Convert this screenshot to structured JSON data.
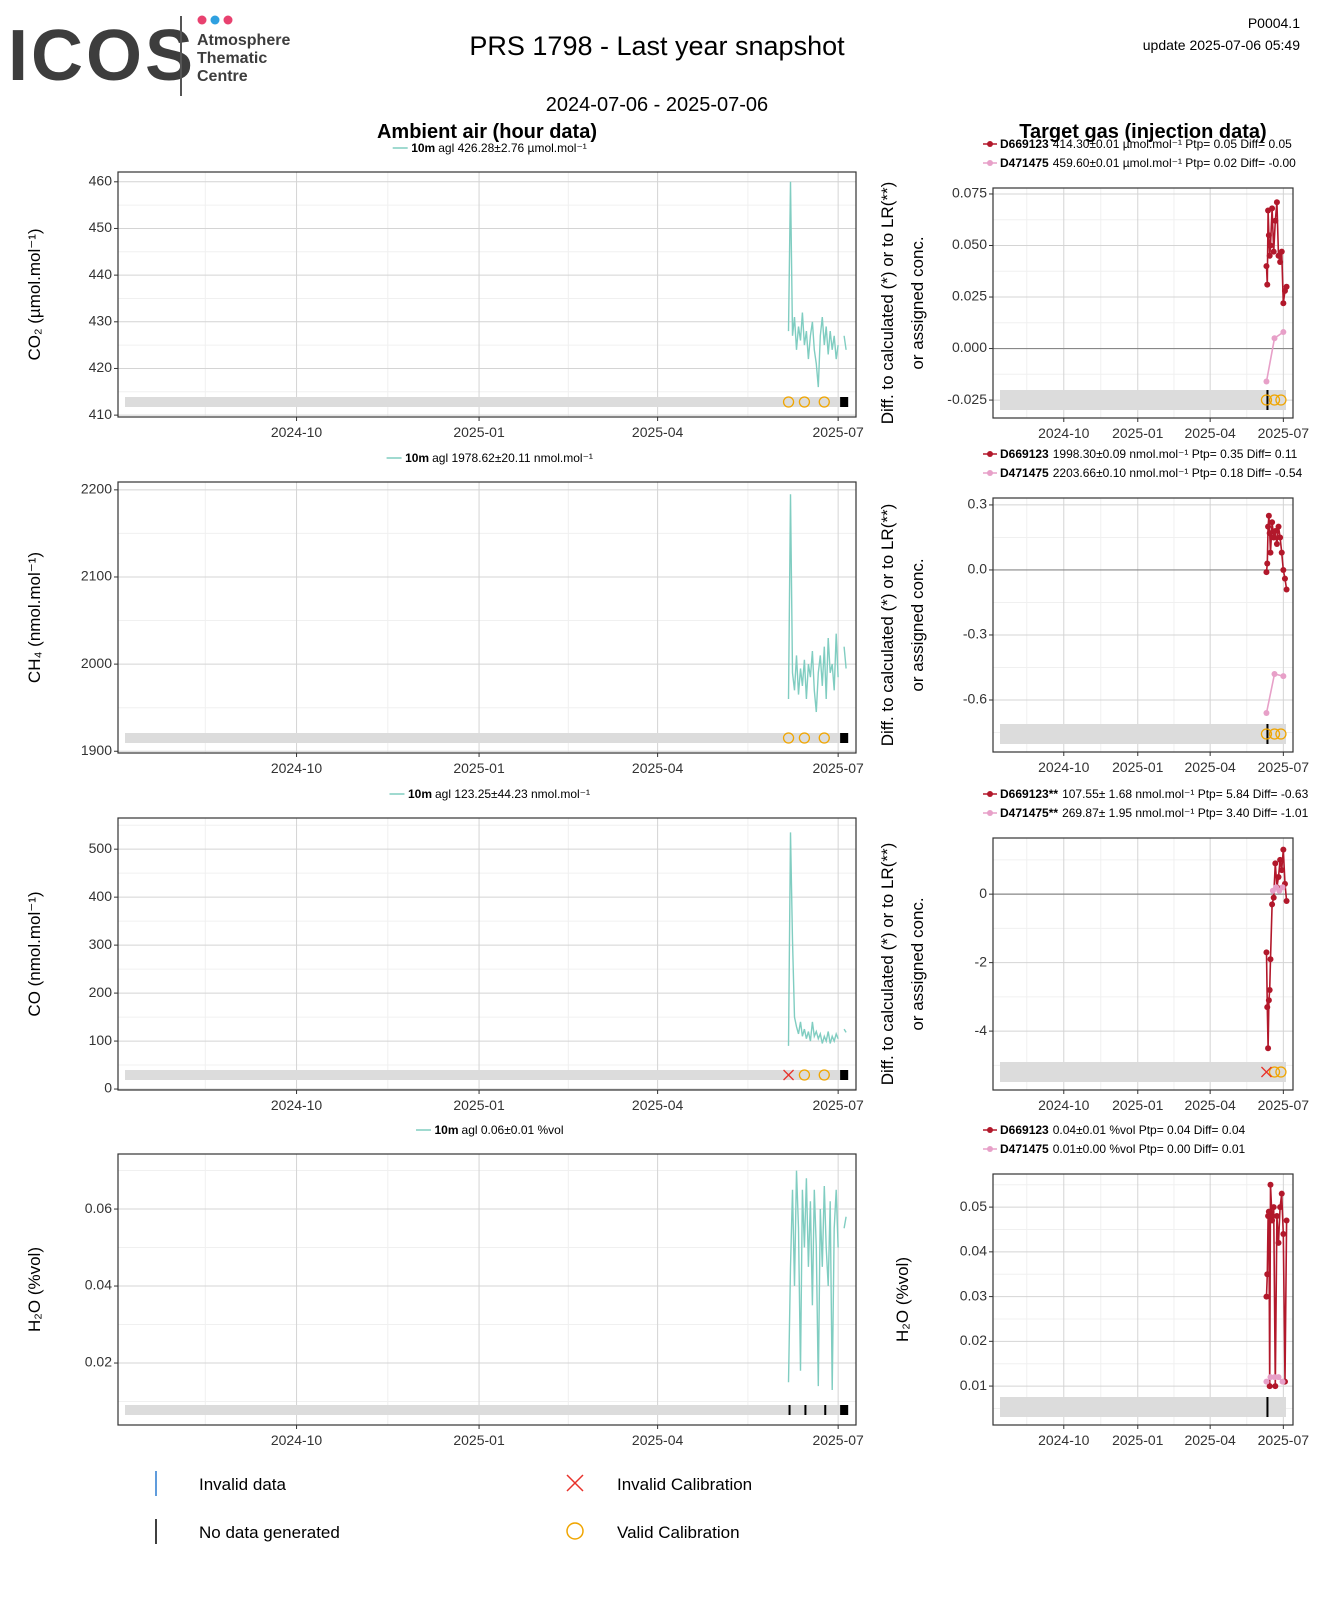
{
  "header": {
    "logo": "ICOS",
    "logo_sub": [
      "Atmosphere",
      "Thematic",
      "Centre"
    ],
    "title": "PRS 1798 - Last year snapshot",
    "code": "P0004.1",
    "update": "update  2025-07-06 05:49",
    "period": "2024-07-06 - 2025-07-06",
    "left_heading": "Ambient air (hour data)",
    "right_heading": "Target gas (injection data)"
  },
  "legend": [
    "Invalid data",
    "No data generated",
    "Invalid Calibration",
    "Valid Calibration"
  ],
  "chart_data": [
    {
      "type": "line",
      "ylabel": [
        "CO₂ (µmol.mol⁻¹)"
      ],
      "xlim": [
        "2024-07-03",
        "2025-07-10"
      ],
      "xticks": [
        "2024-10",
        "2025-01",
        "2025-04",
        "2025-07"
      ],
      "ylim": [
        409.6,
        462.1
      ],
      "yticks": [
        410,
        420,
        430,
        440,
        450,
        460
      ],
      "grid": true,
      "series": [
        {
          "name": "10m",
          "stats": "agl 426.28±2.76 µmol.mol⁻¹",
          "color": "#80cdc1",
          "x": [
            "2025-06-06",
            "2025-06-07",
            "2025-06-08",
            "2025-06-09",
            "2025-06-10",
            "2025-06-11",
            "2025-06-12",
            "2025-06-13",
            "2025-06-14",
            "2025-06-15",
            "2025-06-16",
            "2025-06-17",
            "2025-06-18",
            "2025-06-19",
            "2025-06-20",
            "2025-06-21",
            "2025-06-22",
            "2025-06-23",
            "2025-06-24",
            "2025-06-25",
            "2025-06-26",
            "2025-06-27",
            "2025-06-28",
            "2025-06-29",
            "2025-06-30",
            "2025-07-01",
            "2025-07-02",
            "2025-07-03",
            "2025-07-04",
            "2025-07-05"
          ],
          "values": [
            428,
            460,
            427,
            431,
            424,
            429,
            426,
            432,
            425,
            428,
            422,
            427,
            430,
            424,
            421,
            416,
            427,
            431,
            425,
            429,
            423,
            428,
            424,
            427,
            422,
            425,
            null,
            null,
            427,
            424
          ]
        }
      ],
      "valid_calibrations": [
        "2025-06-06",
        "2025-06-14",
        "2025-06-24"
      ],
      "invalid_calibrations": [],
      "no_data": [
        [
          "2025-07-02",
          "2025-07-06"
        ]
      ]
    },
    {
      "type": "line",
      "ylabel": [
        "CH₄ (nmol.mol⁻¹)"
      ],
      "xlim": [
        "2024-07-03",
        "2025-07-10"
      ],
      "xticks": [
        "2024-10",
        "2025-01",
        "2025-04",
        "2025-07"
      ],
      "ylim": [
        1898,
        2209
      ],
      "yticks": [
        1900,
        2000,
        2100,
        2200
      ],
      "grid": true,
      "series": [
        {
          "name": "10m",
          "stats": "agl 1978.62±20.11 nmol.mol⁻¹",
          "color": "#80cdc1",
          "x": [
            "2025-06-06",
            "2025-06-07",
            "2025-06-08",
            "2025-06-09",
            "2025-06-10",
            "2025-06-11",
            "2025-06-12",
            "2025-06-13",
            "2025-06-14",
            "2025-06-15",
            "2025-06-16",
            "2025-06-17",
            "2025-06-18",
            "2025-06-19",
            "2025-06-20",
            "2025-06-21",
            "2025-06-22",
            "2025-06-23",
            "2025-06-24",
            "2025-06-25",
            "2025-06-26",
            "2025-06-27",
            "2025-06-28",
            "2025-06-29",
            "2025-06-30",
            "2025-07-01",
            "2025-07-02",
            "2025-07-03",
            "2025-07-04",
            "2025-07-05"
          ],
          "values": [
            1960,
            2195,
            1990,
            1970,
            2010,
            1965,
            1995,
            1975,
            2005,
            1960,
            2000,
            1985,
            2015,
            1970,
            1945,
            1990,
            2010,
            1975,
            2020,
            1960,
            2030,
            1990,
            2000,
            1970,
            2035,
            1985,
            null,
            null,
            2020,
            1995
          ]
        }
      ],
      "valid_calibrations": [
        "2025-06-06",
        "2025-06-14",
        "2025-06-24"
      ],
      "invalid_calibrations": [],
      "no_data": [
        [
          "2025-07-02",
          "2025-07-06"
        ]
      ]
    },
    {
      "type": "line",
      "ylabel": [
        "CO (nmol.mol⁻¹)"
      ],
      "xlim": [
        "2024-07-03",
        "2025-07-10"
      ],
      "xticks": [
        "2024-10",
        "2025-01",
        "2025-04",
        "2025-07"
      ],
      "ylim": [
        -2,
        565
      ],
      "yticks": [
        0,
        100,
        200,
        300,
        400,
        500
      ],
      "grid": true,
      "series": [
        {
          "name": "10m",
          "stats": "agl 123.25±44.23 nmol.mol⁻¹",
          "color": "#80cdc1",
          "x": [
            "2025-06-06",
            "2025-06-07",
            "2025-06-08",
            "2025-06-09",
            "2025-06-10",
            "2025-06-11",
            "2025-06-12",
            "2025-06-13",
            "2025-06-14",
            "2025-06-15",
            "2025-06-16",
            "2025-06-17",
            "2025-06-18",
            "2025-06-19",
            "2025-06-20",
            "2025-06-21",
            "2025-06-22",
            "2025-06-23",
            "2025-06-24",
            "2025-06-25",
            "2025-06-26",
            "2025-06-27",
            "2025-06-28",
            "2025-06-29",
            "2025-06-30",
            "2025-07-01",
            "2025-07-02",
            "2025-07-03",
            "2025-07-04",
            "2025-07-05"
          ],
          "values": [
            90,
            535,
            310,
            150,
            130,
            115,
            140,
            110,
            125,
            105,
            120,
            100,
            140,
            110,
            120,
            105,
            115,
            95,
            110,
            100,
            120,
            95,
            110,
            100,
            115,
            105,
            null,
            null,
            125,
            118
          ]
        }
      ],
      "valid_calibrations": [
        "2025-06-14",
        "2025-06-24"
      ],
      "invalid_calibrations": [
        "2025-06-06"
      ],
      "no_data": [
        [
          "2025-07-02",
          "2025-07-06"
        ]
      ]
    },
    {
      "type": "line",
      "ylabel": [
        "H₂O (%vol)"
      ],
      "xlim": [
        "2024-07-03",
        "2025-07-10"
      ],
      "xticks": [
        "2024-10",
        "2025-01",
        "2025-04",
        "2025-07"
      ],
      "ylim": [
        0.0039,
        0.0743
      ],
      "yticks": [
        0.02,
        0.04,
        0.06
      ],
      "grid": true,
      "series": [
        {
          "name": "10m",
          "stats": "agl 0.06±0.01 %vol",
          "color": "#80cdc1",
          "x": [
            "2025-06-06",
            "2025-06-07",
            "2025-06-08",
            "2025-06-09",
            "2025-06-10",
            "2025-06-11",
            "2025-06-12",
            "2025-06-13",
            "2025-06-14",
            "2025-06-15",
            "2025-06-16",
            "2025-06-17",
            "2025-06-18",
            "2025-06-19",
            "2025-06-20",
            "2025-06-21",
            "2025-06-22",
            "2025-06-23",
            "2025-06-24",
            "2025-06-25",
            "2025-06-26",
            "2025-06-27",
            "2025-06-28",
            "2025-06-29",
            "2025-06-30",
            "2025-07-01",
            "2025-07-02",
            "2025-07-03",
            "2025-07-04",
            "2025-07-05"
          ],
          "values": [
            0.015,
            0.045,
            0.065,
            0.04,
            0.07,
            0.055,
            0.018,
            0.065,
            0.05,
            0.068,
            0.045,
            0.062,
            0.035,
            0.065,
            0.05,
            0.014,
            0.06,
            0.045,
            0.066,
            0.05,
            0.04,
            0.062,
            0.013,
            0.055,
            0.065,
            0.05,
            null,
            null,
            0.055,
            0.058
          ]
        }
      ],
      "valid_calibrations": [],
      "invalid_calibrations": [],
      "no_data": [
        [
          "2025-06-06",
          "2025-06-06"
        ],
        [
          "2025-06-14",
          "2025-06-14"
        ],
        [
          "2025-06-24",
          "2025-06-24"
        ],
        [
          "2025-07-02",
          "2025-07-06"
        ]
      ]
    },
    {
      "type": "line",
      "ylabel": [
        "Diff. to calculated (*) or to LR(**)",
        "or assigned conc."
      ],
      "xlim": [
        "2024-07-05",
        "2025-07-13"
      ],
      "xticks": [
        "2024-10",
        "2025-01",
        "2025-04",
        "2025-07"
      ],
      "ylim": [
        -0.0337,
        0.0779
      ],
      "yticks": [
        {
          "value": -0.025,
          "label": "-0.025"
        },
        {
          "value": 0,
          "label": "0.000"
        },
        {
          "value": 0.025,
          "label": "0.025"
        },
        {
          "value": 0.05,
          "label": "0.050"
        },
        {
          "value": 0.075,
          "label": "0.075"
        }
      ],
      "grid": true,
      "hline": 0,
      "series": [
        {
          "name": "D669123",
          "stats": "414.30±0.01 µmol.mol⁻¹ Ptp= 0.05 Diff= 0.05",
          "color": "#b2182b",
          "x": [
            "2025-06-10",
            "2025-06-11",
            "2025-06-12",
            "2025-06-13",
            "2025-06-14",
            "2025-06-15",
            "2025-06-17",
            "2025-06-19",
            "2025-06-21",
            "2025-06-23",
            "2025-06-25",
            "2025-06-27",
            "2025-06-29",
            "2025-07-01",
            "2025-07-03",
            "2025-07-05"
          ],
          "values": [
            0.04,
            0.031,
            0.067,
            0.055,
            0.045,
            0.05,
            0.068,
            0.047,
            0.062,
            0.071,
            0.045,
            0.042,
            0.047,
            0.022,
            0.028,
            0.03
          ]
        },
        {
          "name": "D471475",
          "stats": "459.60±0.01 µmol.mol⁻¹ Ptp= 0.02 Diff= -0.00",
          "color": "#e7a0c8",
          "x": [
            "2025-06-10",
            "2025-06-20",
            "2025-07-01"
          ],
          "values": [
            -0.016,
            0.005,
            0.008
          ]
        }
      ],
      "valid_calibrations": [
        "2025-06-10",
        "2025-06-20",
        "2025-06-28"
      ],
      "invalid_calibrations": [],
      "no_data": [
        [
          "2025-06-10",
          "2025-06-10"
        ]
      ]
    },
    {
      "type": "line",
      "ylabel": [
        "Diff. to calculated (*) or to LR(**)",
        "or assigned conc."
      ],
      "xlim": [
        "2024-07-05",
        "2025-07-13"
      ],
      "xticks": [
        "2024-10",
        "2025-01",
        "2025-04",
        "2025-07"
      ],
      "ylim": [
        -0.84,
        0.332
      ],
      "yticks": [
        -0.6,
        -0.3,
        {
          "value": 0,
          "label": "0.0"
        },
        0.3
      ],
      "grid": true,
      "hline": 0,
      "series": [
        {
          "name": "D669123",
          "stats": "1998.30±0.09 nmol.mol⁻¹ Ptp= 0.35 Diff= 0.11",
          "color": "#b2182b",
          "x": [
            "2025-06-10",
            "2025-06-11",
            "2025-06-12",
            "2025-06-13",
            "2025-06-14",
            "2025-06-15",
            "2025-06-17",
            "2025-06-19",
            "2025-06-21",
            "2025-06-23",
            "2025-06-25",
            "2025-06-27",
            "2025-06-29",
            "2025-07-01",
            "2025-07-03",
            "2025-07-05"
          ],
          "values": [
            -0.01,
            0.03,
            0.2,
            0.25,
            0.17,
            0.08,
            0.22,
            0.15,
            0.18,
            0.12,
            0.2,
            0.15,
            0.08,
            0,
            -0.04,
            -0.09
          ]
        },
        {
          "name": "D471475",
          "stats": "2203.66±0.10 nmol.mol⁻¹ Ptp= 0.18 Diff= -0.54",
          "color": "#e7a0c8",
          "x": [
            "2025-06-10",
            "2025-06-20",
            "2025-07-01"
          ],
          "values": [
            -0.66,
            -0.48,
            -0.49
          ]
        }
      ],
      "valid_calibrations": [
        "2025-06-10",
        "2025-06-20",
        "2025-06-28"
      ],
      "invalid_calibrations": [],
      "no_data": [
        [
          "2025-06-10",
          "2025-06-10"
        ]
      ]
    },
    {
      "type": "line",
      "ylabel": [
        "Diff. to calculated (*) or to LR(**)",
        "or assigned conc."
      ],
      "xlim": [
        "2024-07-05",
        "2025-07-13"
      ],
      "xticks": [
        "2024-10",
        "2025-01",
        "2025-04",
        "2025-07"
      ],
      "ylim": [
        -5.72,
        1.64
      ],
      "yticks": [
        -4,
        -2,
        0
      ],
      "grid": true,
      "hline": 0,
      "series": [
        {
          "name": "D669123**",
          "stats": "107.55± 1.68 nmol.mol⁻¹ Ptp= 5.84 Diff= -0.63",
          "color": "#b2182b",
          "x": [
            "2025-06-10",
            "2025-06-11",
            "2025-06-12",
            "2025-06-13",
            "2025-06-14",
            "2025-06-15",
            "2025-06-17",
            "2025-06-19",
            "2025-06-21",
            "2025-06-23",
            "2025-06-25",
            "2025-06-27",
            "2025-06-29",
            "2025-07-01",
            "2025-07-03",
            "2025-07-05"
          ],
          "values": [
            -1.7,
            -3.3,
            -4.5,
            -3.1,
            -2.8,
            -1.9,
            -0.3,
            -0.1,
            0.9,
            0.2,
            0.5,
            1,
            0.7,
            1.3,
            0.3,
            -0.2
          ]
        },
        {
          "name": "D471475**",
          "stats": "269.87± 1.95 nmol.mol⁻¹ Ptp= 3.40 Diff= -1.01",
          "color": "#e7a0c8",
          "x": [
            "2025-06-18",
            "2025-06-22",
            "2025-06-26",
            "2025-06-30"
          ],
          "values": [
            0.1,
            0.2,
            0.1,
            0.2
          ]
        }
      ],
      "valid_calibrations": [
        "2025-06-20",
        "2025-06-28"
      ],
      "invalid_calibrations": [
        "2025-06-10"
      ],
      "no_data": []
    },
    {
      "type": "line",
      "ylabel": [
        "H₂O (%vol)"
      ],
      "xlim": [
        "2024-07-05",
        "2025-07-13"
      ],
      "xticks": [
        "2024-10",
        "2025-01",
        "2025-04",
        "2025-07"
      ],
      "ylim": [
        0.0013,
        0.0574
      ],
      "yticks": [
        0.01,
        0.02,
        0.03,
        0.04,
        0.05
      ],
      "grid": true,
      "series": [
        {
          "name": "D669123",
          "stats": "0.04±0.01 %vol Ptp= 0.04 Diff= 0.04",
          "color": "#b2182b",
          "x": [
            "2025-06-10",
            "2025-06-11",
            "2025-06-12",
            "2025-06-13",
            "2025-06-14",
            "2025-06-15",
            "2025-06-17",
            "2025-06-19",
            "2025-06-21",
            "2025-06-23",
            "2025-06-25",
            "2025-06-27",
            "2025-06-29",
            "2025-07-01",
            "2025-07-03",
            "2025-07-05"
          ],
          "values": [
            0.03,
            0.035,
            0.048,
            0.049,
            0.01,
            0.055,
            0.047,
            0.05,
            0.01,
            0.048,
            0.042,
            0.05,
            0.053,
            0.044,
            0.011,
            0.047
          ]
        },
        {
          "name": "D471475",
          "stats": "0.01±0.00 %vol Ptp= 0.00 Diff= 0.01",
          "color": "#e7a0c8",
          "x": [
            "2025-06-10",
            "2025-06-15",
            "2025-06-20",
            "2025-06-25",
            "2025-06-30"
          ],
          "values": [
            0.011,
            0.012,
            0.012,
            0.012,
            0.011
          ]
        }
      ],
      "valid_calibrations": [],
      "invalid_calibrations": [],
      "no_data": [
        [
          "2025-06-10",
          "2025-06-10"
        ]
      ]
    }
  ]
}
